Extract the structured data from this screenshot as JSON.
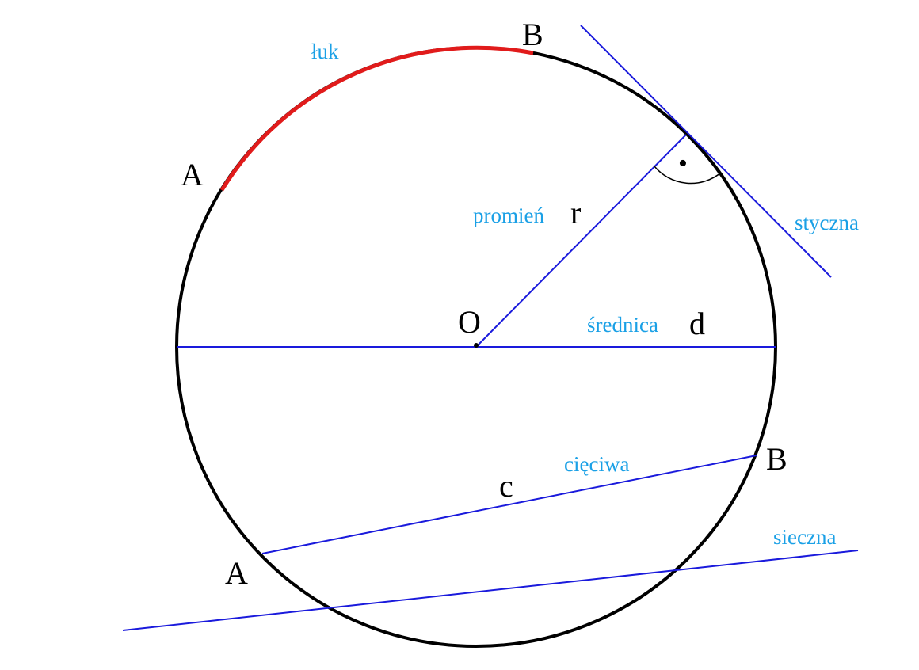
{
  "colors": {
    "background": "#ffffff",
    "circle": "#000000",
    "line": "#1a1adc",
    "arc_highlight": "#e11b1b",
    "term_label": "#1aa0e6",
    "letter_label": "#000000"
  },
  "labels": {
    "arc_term": "łuk",
    "arc_point_a": "A",
    "arc_point_b": "B",
    "radius_term": "promień",
    "radius_symbol": "r",
    "tangent_term": "styczna",
    "center": "O",
    "diameter_term": "średnica",
    "diameter_symbol": "d",
    "chord_term": "cięciwa",
    "chord_symbol": "c",
    "chord_point_a": "A",
    "chord_point_b": "B",
    "secant_term": "sieczna"
  },
  "right_angle_marker": "•"
}
